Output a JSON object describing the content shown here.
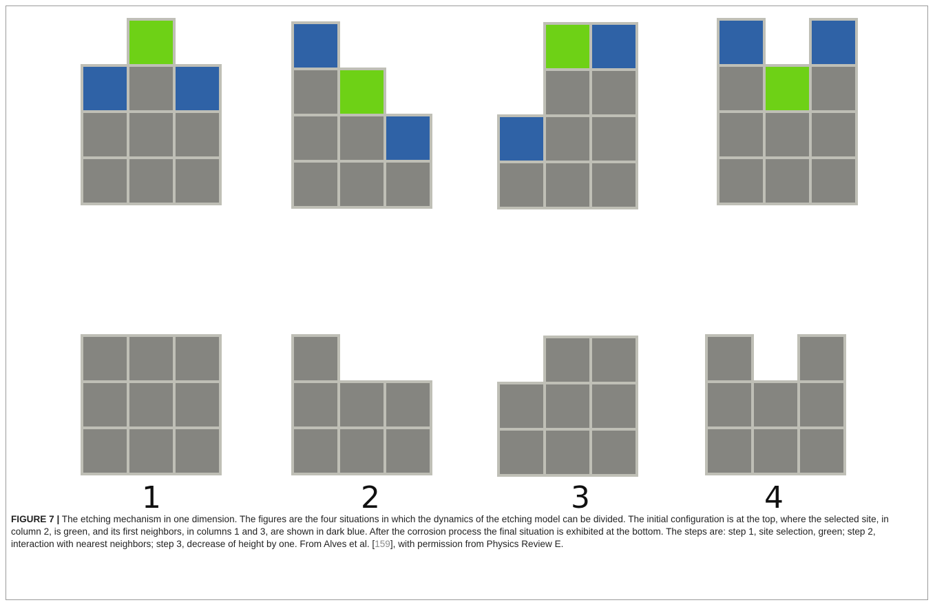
{
  "figure": {
    "panel_labels": [
      "1",
      "2",
      "3",
      "4"
    ],
    "caption": {
      "label": "FIGURE 7 |",
      "text_before_ref": " The etching mechanism in one dimension. The figures are the four situations in which the dynamics of the etching model can be divided. The initial configuration is at the top, where the selected site, in column 2, is green, and its first neighbors, in columns 1 and 3, are shown in dark blue. After the corrosion process the final situation is exhibited at the bottom. The steps are: step 1, site selection, green; step 2, interaction with nearest neighbors; step 3, decrease of height by one. From Alves et al. [",
      "ref": "159",
      "text_after_ref": "], with permission from Physics Review E."
    }
  }
}
